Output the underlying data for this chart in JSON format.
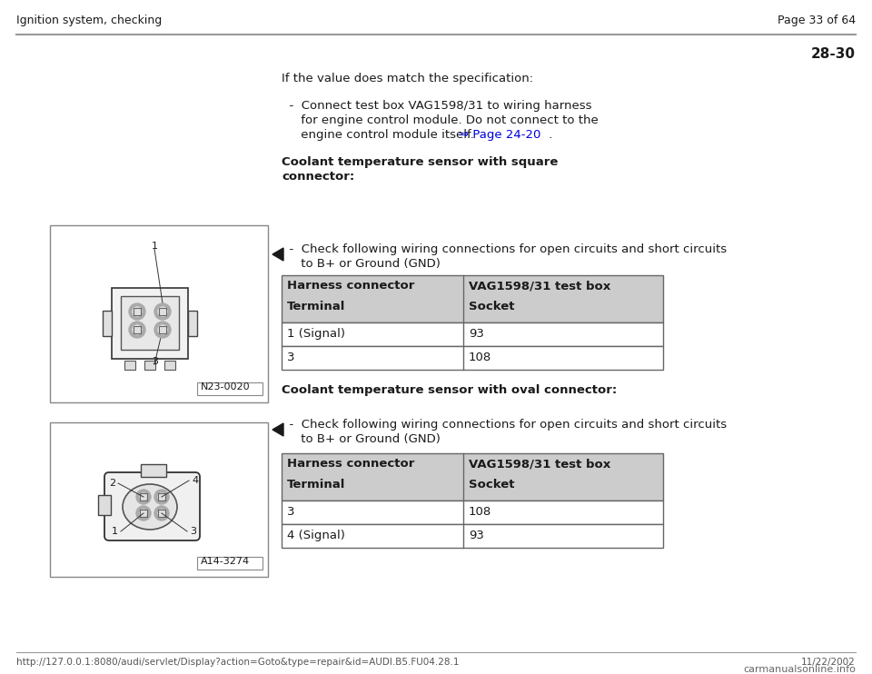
{
  "header_left": "Ignition system, checking",
  "header_right": "Page 33 of 64",
  "section_num": "28-30",
  "bg_color": "#ffffff",
  "header_line_color": "#999999",
  "intro_text": "If the value does match the specification:",
  "bullet1_line1": "  -  Connect test box VAG1598/31 to wiring harness",
  "bullet1_line2": "     for engine control module. Do not connect to the",
  "bullet1_line3": "     engine control module itself.  ",
  "page_link_text": "⇒ Page 24-20",
  "page_link_after": " .",
  "section1_title_line1": "Coolant temperature sensor with square",
  "section1_title_line2": "connector:",
  "section1_bullet_line1": "  -  Check following wiring connections for open circuits and short circuits",
  "section1_bullet_line2": "     to B+ or Ground (GND)",
  "table1_header1": "Harness connector",
  "table1_header2": "VAG1598/31 test box",
  "table1_subheader1": "Terminal",
  "table1_subheader2": "Socket",
  "table1_rows": [
    [
      "1 (Signal)",
      "93"
    ],
    [
      "3",
      "108"
    ]
  ],
  "section2_title": "Coolant temperature sensor with oval connector:",
  "section2_bullet_line1": "  -  Check following wiring connections for open circuits and short circuits",
  "section2_bullet_line2": "     to B+ or Ground (GND)",
  "table2_header1": "Harness connector",
  "table2_header2": "VAG1598/31 test box",
  "table2_subheader1": "Terminal",
  "table2_subheader2": "Socket",
  "table2_rows": [
    [
      "3",
      "108"
    ],
    [
      "4 (Signal)",
      "93"
    ]
  ],
  "footer_url": "http://127.0.0.1:8080/audi/servlet/Display?action=Goto&type=repair&id=AUDI.B5.FU04.28.1",
  "footer_date": "11/22/2002",
  "footer_brand": "carmanualsonline.info",
  "img1_label": "N23-0020",
  "img2_label": "A14-3274",
  "table_header_bg": "#cccccc",
  "table_border_color": "#666666",
  "font_color": "#1a1a1a",
  "link_color": "#0000dd"
}
